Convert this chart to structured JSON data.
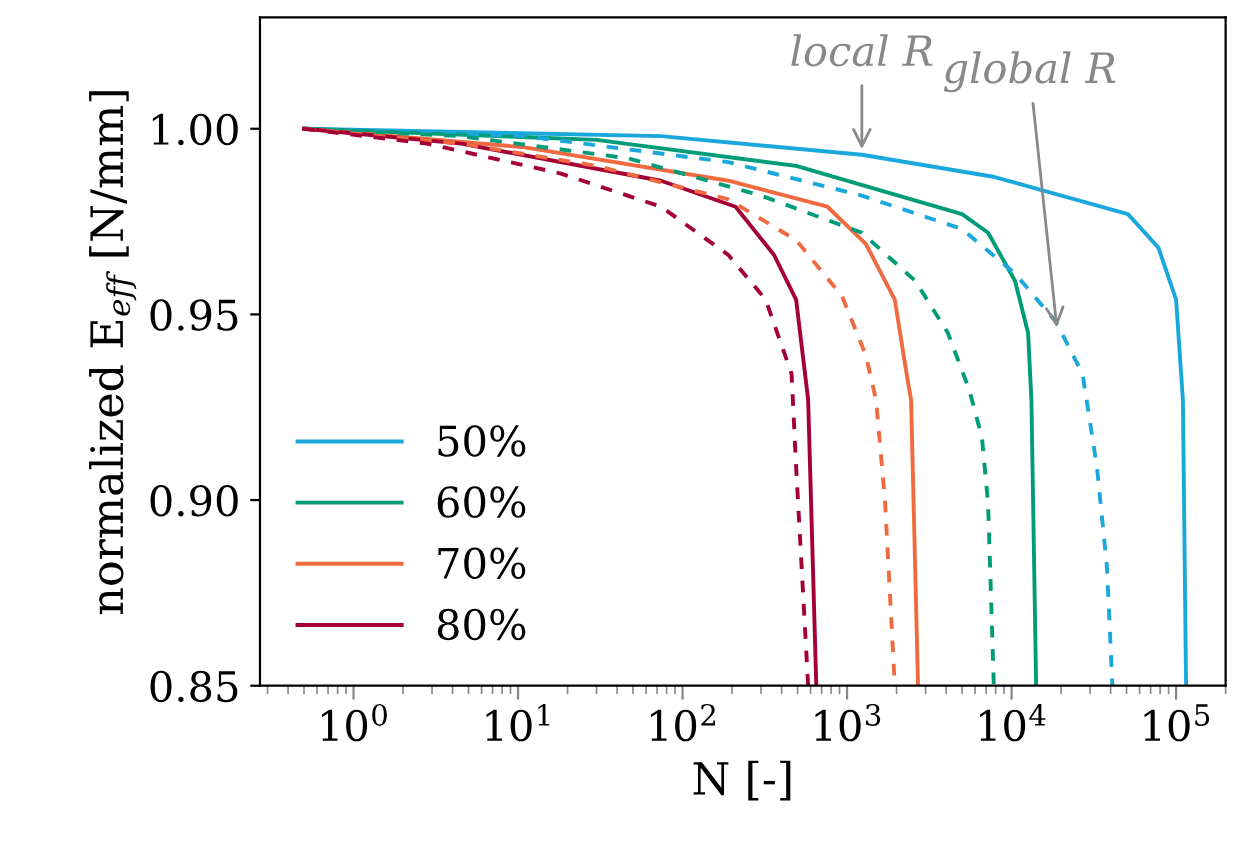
{
  "chart_data": {
    "type": "line",
    "xlabel": "N [-]",
    "ylabel": "normalized E$_{eff}$ [N/mm]",
    "log": "x",
    "grid": false,
    "legend": "bottom left",
    "marker": "none",
    "xlim": [
      0.27,
      200000
    ],
    "ylim": [
      0.85,
      1.03
    ],
    "xticks": [
      {
        "value": 1,
        "label": "10$^{0}$"
      },
      {
        "value": 10,
        "label": "10$^{1}$"
      },
      {
        "value": 100,
        "label": "10$^{2}$"
      },
      {
        "value": 1000,
        "label": "10$^{3}$"
      },
      {
        "value": 10000,
        "label": "10$^{4}$"
      },
      {
        "value": 100000,
        "label": "10$^{5}$"
      }
    ],
    "yticks": [
      {
        "value": 0.85,
        "label": "0.85"
      },
      {
        "value": 0.9,
        "label": "0.90"
      },
      {
        "value": 0.95,
        "label": "0.95"
      },
      {
        "value": 1.0,
        "label": "1.00"
      }
    ],
    "series": [
      {
        "name": "50%",
        "color": "#1aa7dc",
        "line_style": "solid",
        "x": [
          0.5,
          74,
          1230,
          7900,
          51000,
          78000,
          100000,
          110000,
          115000
        ],
        "values": [
          1.0,
          0.998,
          0.993,
          0.987,
          0.977,
          0.968,
          0.954,
          0.927,
          0.85
        ]
      },
      {
        "name": "60%",
        "color": "#009b77",
        "line_style": "solid",
        "x": [
          0.5,
          30,
          490,
          5000,
          7200,
          10500,
          12600,
          13200,
          14100
        ],
        "values": [
          1.0,
          0.997,
          0.99,
          0.977,
          0.972,
          0.959,
          0.945,
          0.927,
          0.85
        ]
      },
      {
        "name": "70%",
        "color": "#f06a40",
        "line_style": "solid",
        "x": [
          0.5,
          11,
          190,
          760,
          1300,
          1950,
          2300,
          2450,
          2700
        ],
        "values": [
          1.0,
          0.995,
          0.986,
          0.979,
          0.969,
          0.954,
          0.934,
          0.927,
          0.85
        ]
      },
      {
        "name": "80%",
        "color": "#a50034",
        "line_style": "solid",
        "x": [
          0.5,
          4.5,
          74,
          210,
          360,
          490,
          580,
          650
        ],
        "values": [
          1.0,
          0.996,
          0.986,
          0.979,
          0.966,
          0.954,
          0.927,
          0.85
        ]
      },
      {
        "color": "#1aa7dc",
        "line_style": "dashed",
        "x": [
          0.5,
          11,
          190,
          1230,
          5000,
          10500,
          18600,
          27000,
          33000,
          38000,
          41000
        ],
        "values": [
          1.0,
          0.998,
          0.991,
          0.982,
          0.973,
          0.961,
          0.948,
          0.934,
          0.909,
          0.882,
          0.85
        ]
      },
      {
        "color": "#009b77",
        "line_style": "dashed",
        "x": [
          0.5,
          4.5,
          47,
          300,
          1230,
          2600,
          4100,
          5500,
          6600,
          7200,
          7800
        ],
        "values": [
          1.0,
          0.998,
          0.992,
          0.982,
          0.972,
          0.959,
          0.945,
          0.93,
          0.917,
          0.899,
          0.85
        ]
      },
      {
        "color": "#f06a40",
        "line_style": "dashed",
        "x": [
          0.5,
          4.5,
          30,
          190,
          490,
          930,
          1300,
          1500,
          1700,
          1950
        ],
        "values": [
          1.0,
          0.996,
          0.99,
          0.981,
          0.97,
          0.955,
          0.939,
          0.927,
          0.9,
          0.85
        ]
      },
      {
        "color": "#a50034",
        "line_style": "dashed",
        "x": [
          0.5,
          2.8,
          18,
          74,
          190,
          320,
          460,
          490,
          580
        ],
        "values": [
          1.0,
          0.996,
          0.988,
          0.979,
          0.966,
          0.954,
          0.934,
          0.909,
          0.85
        ]
      }
    ],
    "annotations": [
      {
        "text": "local R",
        "x": 1230,
        "y": 0.993
      },
      {
        "text": "global R",
        "x": 19000,
        "y": 0.945
      }
    ]
  }
}
